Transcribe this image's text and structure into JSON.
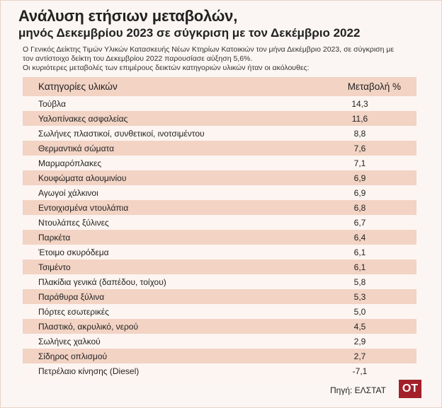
{
  "title": "Ανάλυση ετήσιων μεταβολών,",
  "subtitle": "μηνός Δεκεμβρίου 2023 σε σύγκριση με τον Δεκέμβριο 2022",
  "intro_line1": "Ο Γενικός Δείκτης Τιμών Υλικών Κατασκευής Νέων Κτηρίων Κατοικιών τον μήνα Δεκέμβριο 2023, σε σύγκριση με",
  "intro_line2": "τον αντίστοιχο δείκτη του Δεκεμβρίου 2022 παρουσίασε αύξηση 5,6%.",
  "intro_line3": "Οι κυριότερες μεταβολές των επιμέρους δεικτών κατηγοριών υλικών ήταν οι ακόλουθες:",
  "table": {
    "header_category": "Κατηγορίες υλικών",
    "header_value": "Μεταβολή %",
    "rows": [
      {
        "category": "Τούβλα",
        "value": "14,3"
      },
      {
        "category": "Υαλοπίνακες ασφαλείας",
        "value": "11,6"
      },
      {
        "category": "Σωλήνες πλαστικοί, συνθετικοί, ινοτσιμέντου",
        "value": "8,8"
      },
      {
        "category": "Θερμαντικά σώματα",
        "value": "7,6"
      },
      {
        "category": "Μαρμαρόπλακες",
        "value": "7,1"
      },
      {
        "category": "Κουφώματα αλουμινίου",
        "value": "6,9"
      },
      {
        "category": "Αγωγοί χάλκινοι",
        "value": "6,9"
      },
      {
        "category": "Εντοιχισμένα ντουλάπια",
        "value": "6,8"
      },
      {
        "category": "Ντουλάπες ξύλινες",
        "value": "6,7"
      },
      {
        "category": "Παρκέτα",
        "value": "6,4"
      },
      {
        "category": "Έτοιμο σκυρόδεμα",
        "value": "6,1"
      },
      {
        "category": "Τσιμέντο",
        "value": "6,1"
      },
      {
        "category": "Πλακίδια γενικά (δαπέδου, τοίχου)",
        "value": "5,8"
      },
      {
        "category": "Παράθυρα ξύλινα",
        "value": "5,3"
      },
      {
        "category": "Πόρτες εσωτερικές",
        "value": "5,0"
      },
      {
        "category": "Πλαστικό, ακρυλικό, νερού",
        "value": "4,5"
      },
      {
        "category": "Σωλήνες χαλκού",
        "value": "2,9"
      },
      {
        "category": "Σίδηρος οπλισμού",
        "value": "2,7"
      },
      {
        "category": "Πετρέλαιο κίνησης (Diesel)",
        "value": "-7,1"
      }
    ]
  },
  "source": "Πηγή: ΕΛΣΤΑΤ",
  "logo_text": "OT",
  "colors": {
    "stripe": "#f2d3c4",
    "logo": "#a3202a"
  }
}
